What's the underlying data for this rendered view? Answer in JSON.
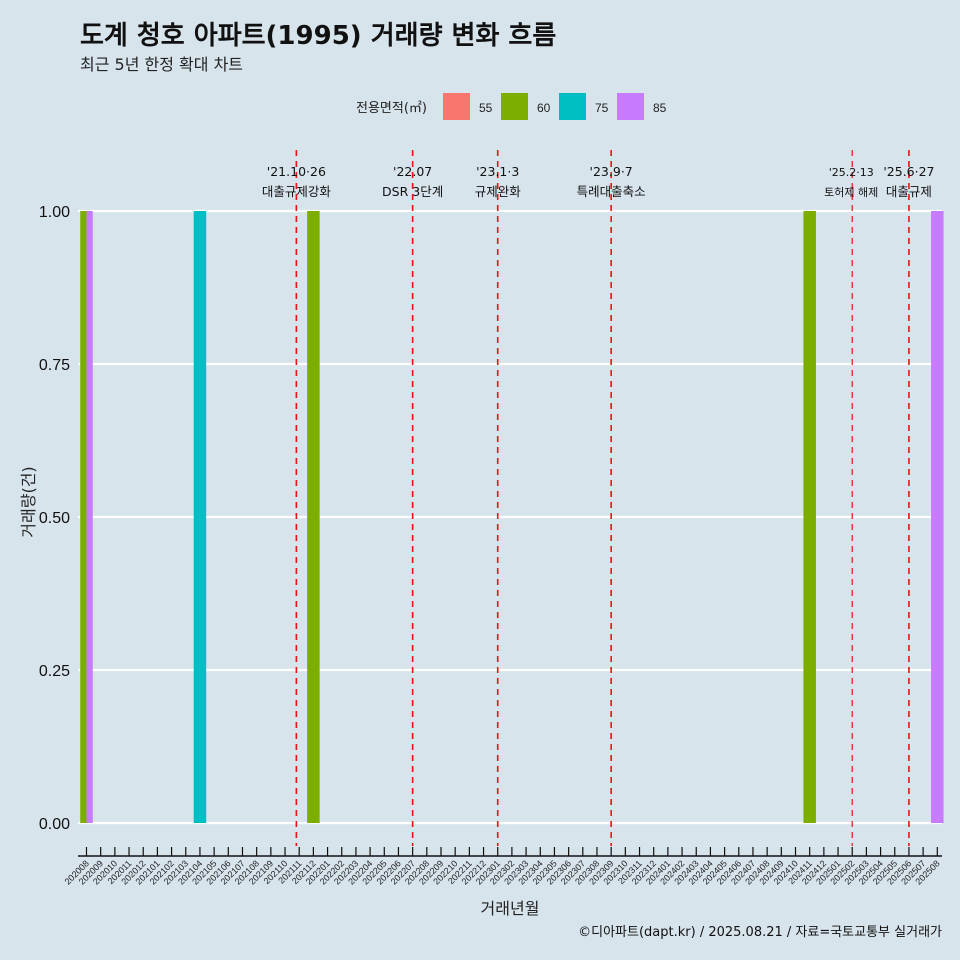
{
  "chart_data": {
    "type": "bar",
    "title": "도계 청호 아파트(1995) 거래량 변화 흐름",
    "subtitle": "최근 5년 한정 확대 차트",
    "xlabel": "거래년월",
    "ylabel": "거래량(건)",
    "ylim": [
      0,
      1
    ],
    "yticks": [
      "0.00",
      "0.25",
      "0.50",
      "0.75",
      "1.00"
    ],
    "ytick_values": [
      0,
      0.25,
      0.5,
      0.75,
      1.0
    ],
    "grid": true,
    "legend": {
      "title": "전용면적(㎡)",
      "position": "top",
      "entries": [
        {
          "label": "55",
          "color": "#F8766D"
        },
        {
          "label": "60",
          "color": "#7CAE00"
        },
        {
          "label": "75",
          "color": "#00BFC4"
        },
        {
          "label": "85",
          "color": "#C77CFF"
        }
      ]
    },
    "categories": [
      "202008",
      "202009",
      "202010",
      "202011",
      "202012",
      "202101",
      "202102",
      "202103",
      "202104",
      "202105",
      "202106",
      "202107",
      "202108",
      "202109",
      "202110",
      "202111",
      "202112",
      "202201",
      "202202",
      "202203",
      "202204",
      "202205",
      "202206",
      "202207",
      "202208",
      "202209",
      "202210",
      "202211",
      "202212",
      "202301",
      "202302",
      "202303",
      "202304",
      "202305",
      "202306",
      "202307",
      "202308",
      "202309",
      "202310",
      "202311",
      "202312",
      "202401",
      "202402",
      "202403",
      "202404",
      "202405",
      "202406",
      "202407",
      "202408",
      "202409",
      "202410",
      "202411",
      "202412",
      "202501",
      "202502",
      "202503",
      "202504",
      "202505",
      "202506",
      "202507",
      "202508"
    ],
    "bars": [
      {
        "category": "202008",
        "series": [
          "60",
          "85"
        ],
        "values": [
          1,
          1
        ]
      },
      {
        "category": "202104",
        "series": [
          "75"
        ],
        "values": [
          1
        ]
      },
      {
        "category": "202112",
        "series": [
          "60"
        ],
        "values": [
          1
        ]
      },
      {
        "category": "202411",
        "series": [
          "60"
        ],
        "values": [
          1
        ]
      },
      {
        "category": "202508",
        "series": [
          "85"
        ],
        "values": [
          1
        ]
      }
    ],
    "annotations": [
      {
        "date_label": "'21.10·26",
        "event": "대출규제강화",
        "x_index": 14.8,
        "size": "normal"
      },
      {
        "date_label": "'22.07",
        "event": "DSR 3단계",
        "x_index": 23.0,
        "size": "normal"
      },
      {
        "date_label": "'23.1·3",
        "event": "규제완화",
        "x_index": 29.0,
        "size": "normal"
      },
      {
        "date_label": "'23.9·7",
        "event": "특례대출축소",
        "x_index": 37.0,
        "size": "normal"
      },
      {
        "date_label": "'25.2·13",
        "event": "토허제 해제",
        "x_index": 54.0,
        "size": "small"
      },
      {
        "date_label": "'25.6·27",
        "event": "대출규제",
        "x_index": 58.0,
        "size": "normal"
      }
    ],
    "caption": "©디아파트(dapt.kr) / 2025.08.21 / 자료=국토교통부 실거래가"
  }
}
